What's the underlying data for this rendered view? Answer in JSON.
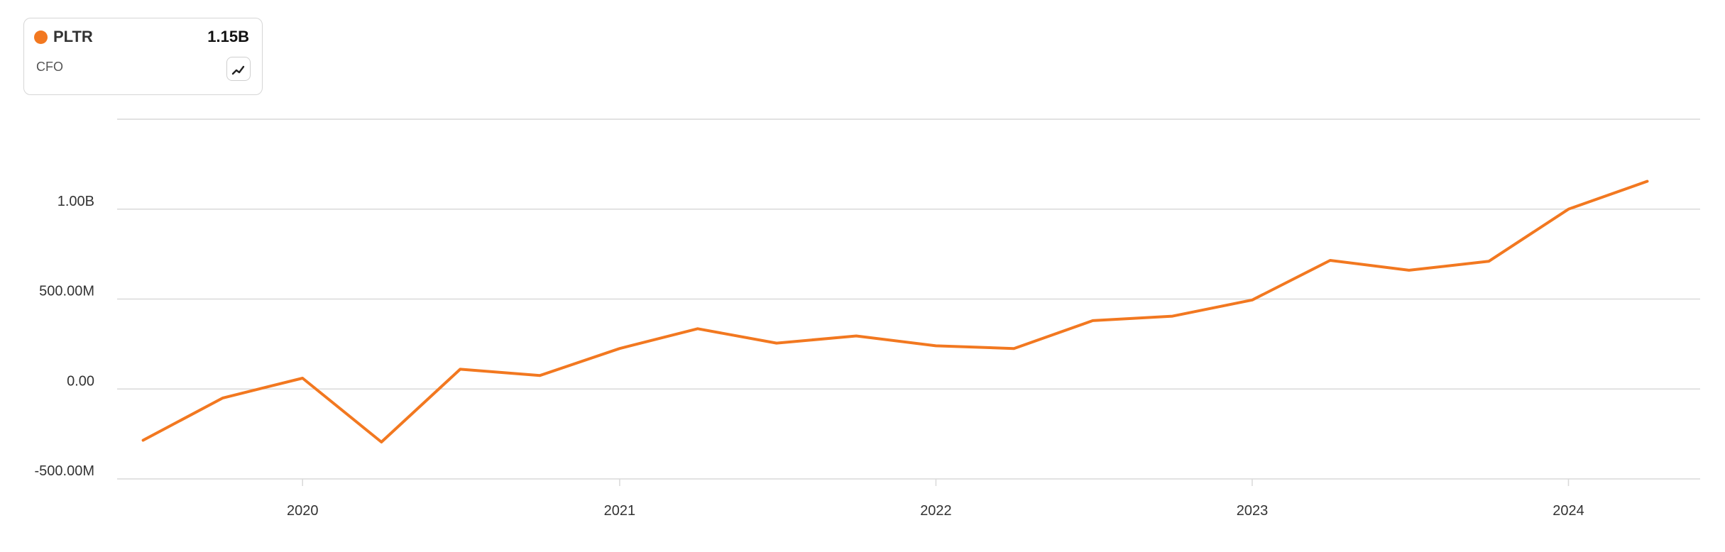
{
  "legend": {
    "ticker": "PLTR",
    "value": "1.15B",
    "metric": "CFO",
    "chart_toggle_icon": "line-chart-icon"
  },
  "colors": {
    "series": "#f27820",
    "grid": "#d9d9d9",
    "axis_text": "#333333"
  },
  "chart_data": {
    "type": "line",
    "series": [
      {
        "name": "PLTR",
        "x": [
          "2019-07-01",
          "2019-10-01",
          "2020-01-01",
          "2020-04-01",
          "2020-07-01",
          "2020-10-01",
          "2021-01-01",
          "2021-04-01",
          "2021-07-01",
          "2021-10-01",
          "2022-01-01",
          "2022-04-01",
          "2022-07-01",
          "2022-10-01",
          "2023-01-01",
          "2023-04-01",
          "2023-07-01",
          "2023-10-01",
          "2024-01-01",
          "2024-04-01"
        ],
        "values": [
          -285000000,
          -50000000,
          60000000,
          -295000000,
          110000000,
          75000000,
          225000000,
          335000000,
          255000000,
          295000000,
          240000000,
          225000000,
          380000000,
          405000000,
          495000000,
          715000000,
          660000000,
          710000000,
          1000000000,
          1155000000
        ]
      }
    ],
    "y_ticks": [
      {
        "value": -500000000,
        "label": "-500.00M"
      },
      {
        "value": 0,
        "label": "0.00"
      },
      {
        "value": 500000000,
        "label": "500.00M"
      },
      {
        "value": 1000000000,
        "label": "1.00B"
      }
    ],
    "x_ticks": [
      {
        "value": "2020-01-01",
        "label": "2020"
      },
      {
        "value": "2021-01-01",
        "label": "2021"
      },
      {
        "value": "2022-01-01",
        "label": "2022"
      },
      {
        "value": "2023-01-01",
        "label": "2023"
      },
      {
        "value": "2024-01-01",
        "label": "2024"
      }
    ],
    "ylim": [
      -500000000,
      1500000000
    ],
    "xlim": [
      "2019-06-01",
      "2024-06-01"
    ],
    "grid": true,
    "title": "",
    "xlabel": "",
    "ylabel": ""
  }
}
